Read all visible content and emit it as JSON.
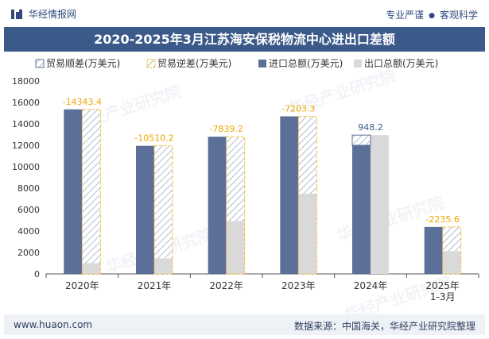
{
  "header": {
    "brand": "华经情报网",
    "slogan_left": "专业严谨",
    "slogan_sep": "●",
    "slogan_right": "客观科学"
  },
  "title": "2020-2025年3月江苏海安保税物流中心进出口差额",
  "footer": {
    "website": "www.huaon.com",
    "source": "数据来源：中国海关，华经产业研究院整理"
  },
  "watermark": "华经产业研究院",
  "watermark_url": "www.huaon.com",
  "colors": {
    "imports": "#5b6f99",
    "exports": "#d9d9d9",
    "deficit_border": "#f5c23a",
    "surplus_border": "#5b6f99",
    "deficit_label": "#f0a500",
    "surplus_label": "#3b5a8a",
    "title_bg": "#3b5a8a"
  },
  "chart_data": {
    "type": "bar",
    "categories": [
      "2020年",
      "2021年",
      "2022年",
      "2023年",
      "2024年",
      "2025年\n1-3月"
    ],
    "series": [
      {
        "name": "进口总额(万美元)",
        "values": [
          15350,
          11950,
          12800,
          14700,
          12000,
          4380
        ]
      },
      {
        "name": "出口总额(万美元)",
        "values": [
          1000,
          1450,
          4950,
          7480,
          12950,
          2140
        ]
      },
      {
        "name": "贸易顺差(万美元)",
        "values": [
          null,
          null,
          null,
          null,
          948.2,
          null
        ]
      },
      {
        "name": "贸易逆差(万美元)",
        "values": [
          -14343.4,
          -10510.2,
          -7839.2,
          -7203.3,
          null,
          -2235.6
        ]
      }
    ],
    "balance_labels": [
      "-14343.4",
      "-10510.2",
      "-7839.2",
      "-7203.3",
      "948.2",
      "-2235.6"
    ],
    "y_ticks": [
      "0",
      "2000",
      "4000",
      "6000",
      "8000",
      "10000",
      "12000",
      "14000",
      "16000",
      "18000"
    ],
    "ylim": [
      0,
      18000
    ],
    "legend": [
      "贸易顺差(万美元)",
      "贸易逆差(万美元)",
      "进口总额(万美元)",
      "出口总额(万美元)"
    ],
    "legend_position": "top",
    "grid": false
  }
}
